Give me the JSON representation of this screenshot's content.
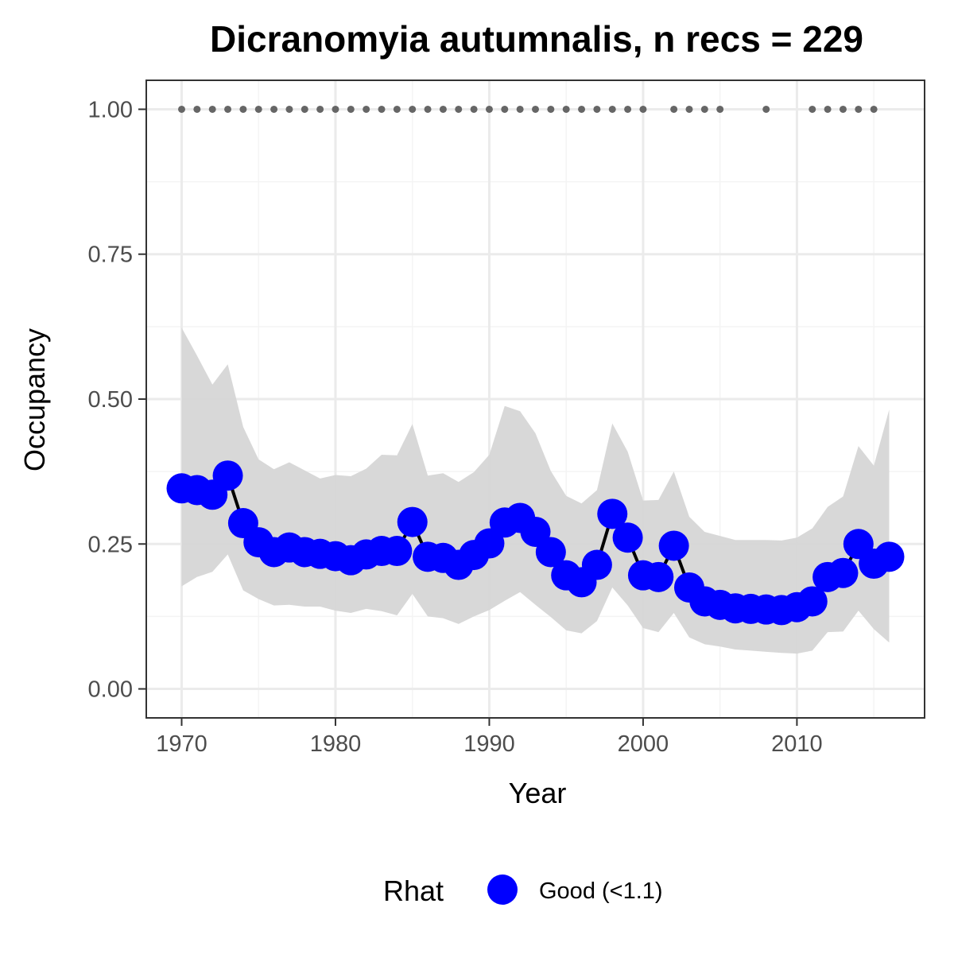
{
  "chart_data": {
    "type": "line",
    "title": "Dicranomyia autumnalis, n recs = 229",
    "xlabel": "Year",
    "ylabel": "Occupancy",
    "xlim": [
      1967.7,
      2018.3
    ],
    "ylim": [
      -0.05,
      1.05
    ],
    "x_ticks": [
      1970,
      1980,
      1990,
      2000,
      2010
    ],
    "x_tick_labels": [
      "1970",
      "1980",
      "1990",
      "2000",
      "2010"
    ],
    "y_ticks": [
      0,
      0.25,
      0.5,
      0.75,
      1
    ],
    "y_tick_labels": [
      "0.00",
      "0.25",
      "0.50",
      "0.75",
      "1.00"
    ],
    "grid": true,
    "legend": {
      "title": "Rhat",
      "position": "bottom",
      "entries": [
        {
          "label": "Good (<1.1)",
          "color": "#0000ff"
        }
      ]
    },
    "colors": {
      "series": "#0000ff",
      "line": "#000000",
      "ribbon": "#d6d6d6",
      "records": "#666666",
      "grid_major": "#ebebeb",
      "grid_minor": "#f4f4f4",
      "panel_border": "#333333"
    },
    "series": [
      {
        "name": "Good (<1.1)",
        "x": [
          1970,
          1971,
          1972,
          1973,
          1974,
          1975,
          1976,
          1977,
          1978,
          1979,
          1980,
          1981,
          1982,
          1983,
          1984,
          1985,
          1986,
          1987,
          1988,
          1989,
          1990,
          1991,
          1992,
          1993,
          1994,
          1995,
          1996,
          1997,
          1998,
          1999,
          2000,
          2001,
          2002,
          2003,
          2004,
          2005,
          2006,
          2007,
          2008,
          2009,
          2010,
          2011,
          2012,
          2013,
          2014,
          2015,
          2016
        ],
        "y": [
          0.346,
          0.343,
          0.335,
          0.368,
          0.286,
          0.253,
          0.236,
          0.244,
          0.236,
          0.233,
          0.229,
          0.222,
          0.232,
          0.238,
          0.238,
          0.288,
          0.228,
          0.226,
          0.214,
          0.231,
          0.251,
          0.287,
          0.295,
          0.271,
          0.236,
          0.196,
          0.184,
          0.214,
          0.302,
          0.261,
          0.196,
          0.193,
          0.247,
          0.175,
          0.151,
          0.145,
          0.139,
          0.138,
          0.137,
          0.136,
          0.141,
          0.151,
          0.193,
          0.2,
          0.25,
          0.216,
          0.228
        ],
        "lower": [
          0.177,
          0.193,
          0.202,
          0.232,
          0.17,
          0.155,
          0.144,
          0.145,
          0.142,
          0.142,
          0.135,
          0.131,
          0.138,
          0.134,
          0.127,
          0.164,
          0.125,
          0.122,
          0.112,
          0.125,
          0.136,
          0.152,
          0.167,
          0.145,
          0.124,
          0.101,
          0.096,
          0.117,
          0.175,
          0.144,
          0.105,
          0.098,
          0.131,
          0.089,
          0.077,
          0.073,
          0.068,
          0.066,
          0.064,
          0.062,
          0.061,
          0.066,
          0.098,
          0.099,
          0.135,
          0.103,
          0.08
        ],
        "upper": [
          0.623,
          0.575,
          0.525,
          0.56,
          0.452,
          0.396,
          0.379,
          0.391,
          0.377,
          0.363,
          0.369,
          0.367,
          0.38,
          0.404,
          0.403,
          0.457,
          0.368,
          0.372,
          0.357,
          0.374,
          0.404,
          0.488,
          0.479,
          0.441,
          0.376,
          0.333,
          0.32,
          0.343,
          0.458,
          0.409,
          0.325,
          0.326,
          0.375,
          0.297,
          0.271,
          0.264,
          0.257,
          0.257,
          0.257,
          0.256,
          0.261,
          0.277,
          0.314,
          0.332,
          0.419,
          0.385,
          0.482
        ]
      }
    ],
    "record_years": [
      1970,
      1971,
      1972,
      1973,
      1974,
      1975,
      1976,
      1977,
      1978,
      1979,
      1980,
      1981,
      1982,
      1983,
      1984,
      1985,
      1986,
      1987,
      1988,
      1989,
      1990,
      1991,
      1992,
      1993,
      1994,
      1995,
      1996,
      1997,
      1998,
      1999,
      2000,
      2002,
      2003,
      2004,
      2005,
      2008,
      2011,
      2012,
      2013,
      2014,
      2015
    ],
    "record_y": 1.0
  }
}
